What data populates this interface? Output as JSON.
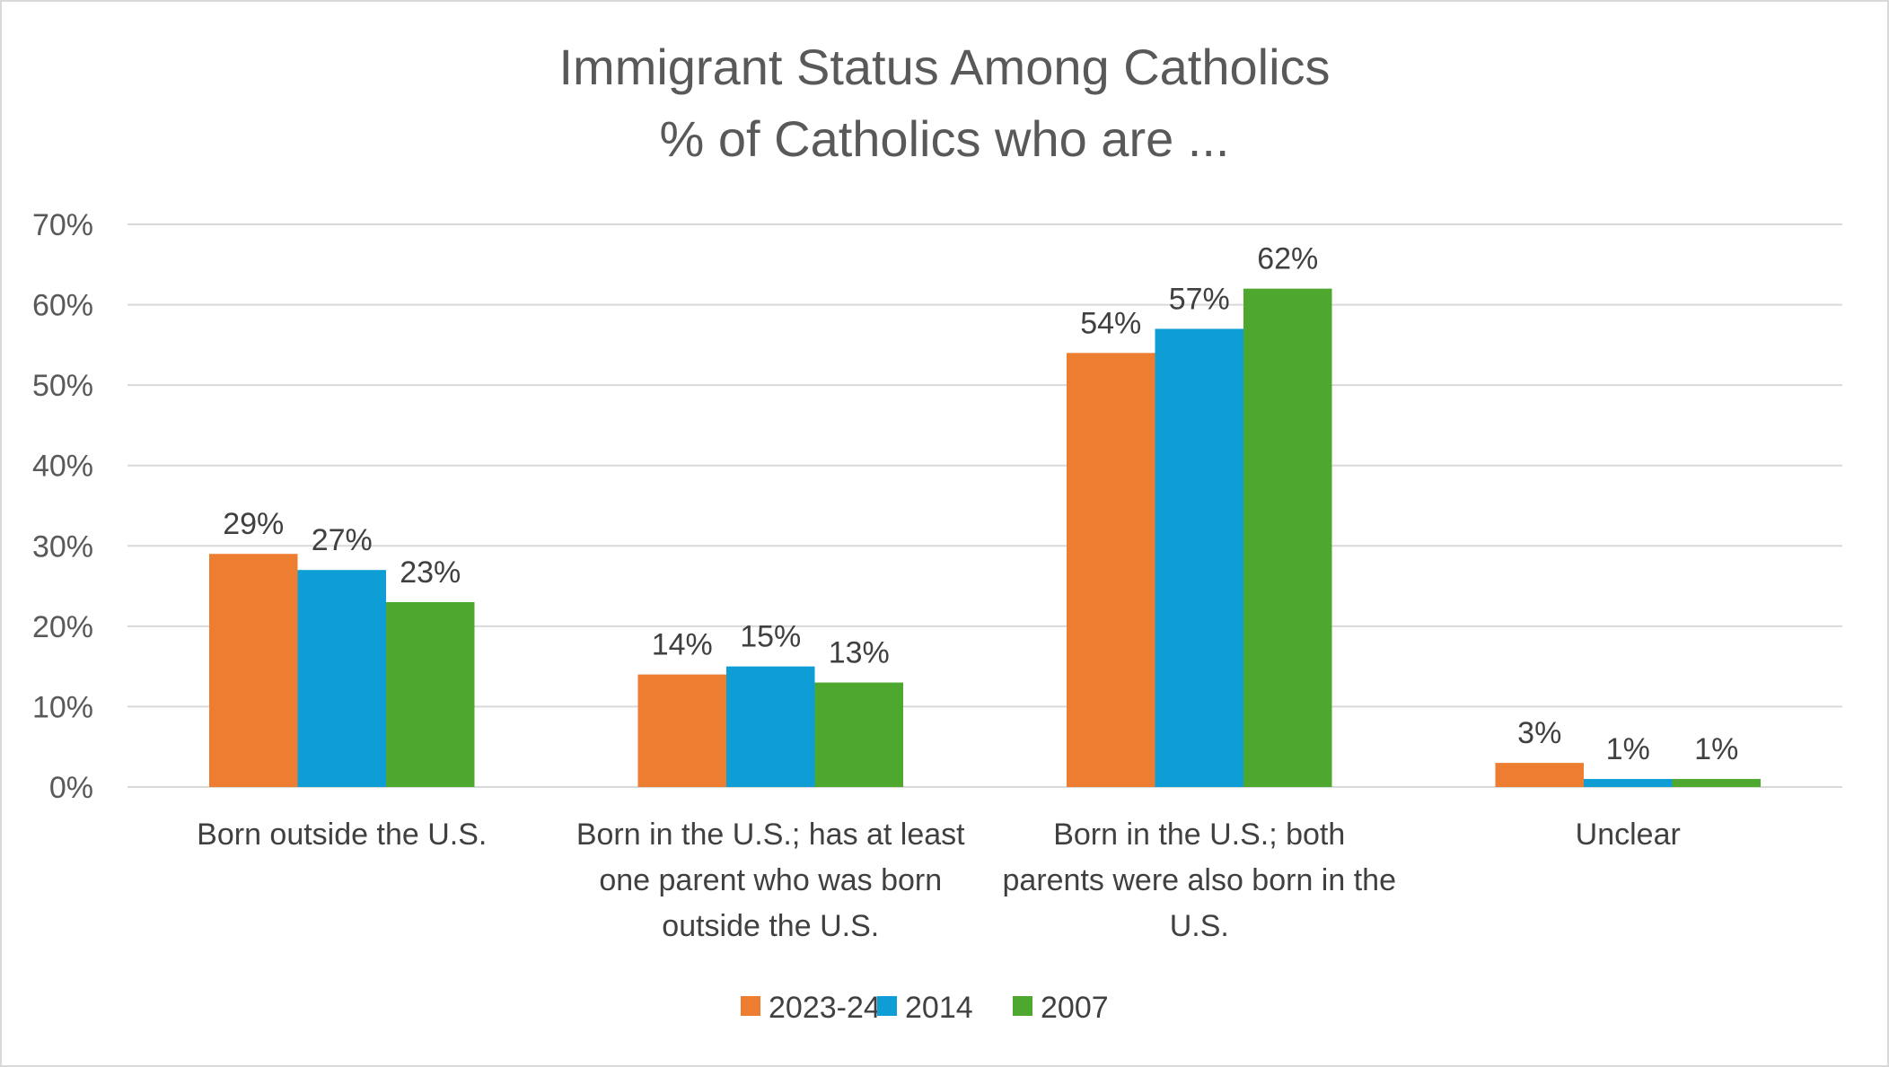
{
  "chart_data": {
    "type": "bar",
    "title": [
      "Immigrant Status Among Catholics",
      "% of Catholics who are ..."
    ],
    "categories": [
      [
        "Born outside the U.S."
      ],
      [
        "Born in the U.S.; has at least",
        "one parent who was born",
        "outside the U.S."
      ],
      [
        "Born in the U.S.; both",
        "parents were also born in the",
        "U.S."
      ],
      [
        "Unclear"
      ]
    ],
    "series": [
      {
        "name": "2023-24",
        "color": "#ED7D31",
        "values": [
          29,
          14,
          54,
          3
        ],
        "labels": [
          "29%",
          "14%",
          "54%",
          "3%"
        ]
      },
      {
        "name": "2014",
        "color": "#0E9ED5",
        "values": [
          27,
          15,
          57,
          1
        ],
        "labels": [
          "27%",
          "15%",
          "57%",
          "1%"
        ]
      },
      {
        "name": "2007",
        "color": "#4EA72E",
        "values": [
          23,
          13,
          62,
          1
        ],
        "labels": [
          "23%",
          "13%",
          "62%",
          "1%"
        ]
      }
    ],
    "ylim": [
      0,
      70
    ],
    "yticks": [
      0,
      10,
      20,
      30,
      40,
      50,
      60,
      70
    ],
    "ytick_labels": [
      "0%",
      "10%",
      "20%",
      "30%",
      "40%",
      "50%",
      "60%",
      "70%"
    ],
    "grid": true,
    "legend": "bottom-center"
  }
}
